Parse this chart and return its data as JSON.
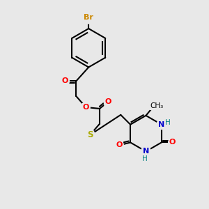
{
  "background_color": "#e8e8e8",
  "bond_color": "#000000",
  "atom_colors": {
    "Br": "#cc8800",
    "O": "#ff0000",
    "N": "#0000cc",
    "S": "#aaaa00",
    "H": "#008080",
    "C": "#000000"
  },
  "figsize": [
    3.0,
    3.0
  ],
  "dpi": 100
}
